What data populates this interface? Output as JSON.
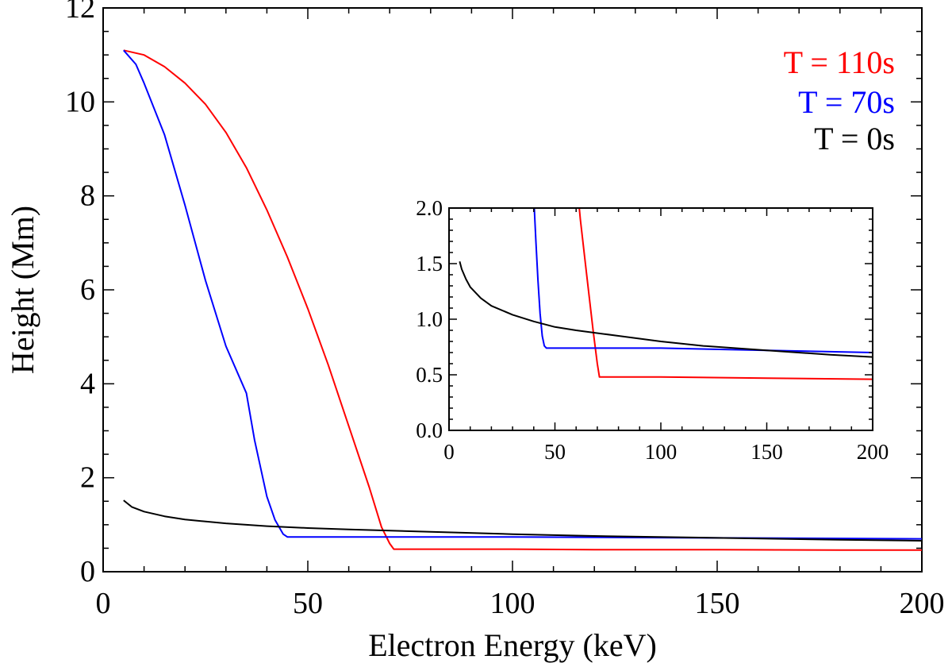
{
  "chart_data": [
    {
      "type": "line",
      "id": "main",
      "xlabel": "Electron Energy (keV)",
      "ylabel": "Height (Mm)",
      "xlim": [
        0,
        200
      ],
      "ylim": [
        0,
        12
      ],
      "xticks": [
        0,
        50,
        100,
        150,
        200
      ],
      "yticks": [
        0,
        2,
        4,
        6,
        8,
        10,
        12
      ],
      "grid": false,
      "legend_position": "top-right",
      "series": [
        {
          "name": "T = 110s",
          "color": "#ff0000",
          "x": [
            5,
            10,
            15,
            20,
            25,
            30,
            35,
            40,
            45,
            50,
            55,
            60,
            65,
            68,
            70,
            71,
            80,
            100,
            120,
            150,
            180,
            200
          ],
          "y": [
            11.1,
            11.0,
            10.75,
            10.4,
            9.95,
            9.35,
            8.6,
            7.7,
            6.7,
            5.6,
            4.4,
            3.1,
            1.8,
            0.95,
            0.6,
            0.48,
            0.48,
            0.48,
            0.47,
            0.47,
            0.46,
            0.46
          ]
        },
        {
          "name": "T = 70s",
          "color": "#0000ff",
          "x": [
            5,
            8,
            10,
            15,
            20,
            25,
            30,
            35,
            37,
            40,
            42,
            44,
            45,
            46,
            50,
            100,
            150,
            200
          ],
          "y": [
            11.1,
            10.8,
            10.4,
            9.3,
            7.8,
            6.2,
            4.8,
            3.8,
            2.8,
            1.6,
            1.1,
            0.8,
            0.74,
            0.74,
            0.74,
            0.74,
            0.72,
            0.7
          ]
        },
        {
          "name": "T = 0s",
          "color": "#000000",
          "x": [
            5,
            7,
            10,
            15,
            20,
            30,
            40,
            50,
            60,
            80,
            100,
            120,
            150,
            180,
            200
          ],
          "y": [
            1.52,
            1.38,
            1.28,
            1.18,
            1.11,
            1.03,
            0.97,
            0.93,
            0.9,
            0.85,
            0.8,
            0.76,
            0.72,
            0.68,
            0.66
          ]
        }
      ]
    },
    {
      "type": "line",
      "id": "inset",
      "xlim": [
        0,
        200
      ],
      "ylim": [
        0,
        2
      ],
      "xticks": [
        0,
        50,
        100,
        150,
        200
      ],
      "yticks": [
        0.0,
        0.5,
        1.0,
        1.5,
        2.0
      ],
      "ytick_labels": [
        "0.0",
        "0.5",
        "1.0",
        "1.5",
        "2.0"
      ],
      "grid": false,
      "series": [
        {
          "name": "T = 110s",
          "color": "#ff0000",
          "x": [
            61,
            62,
            65,
            68,
            70,
            71,
            80,
            100,
            150,
            200
          ],
          "y": [
            2.1,
            1.9,
            1.4,
            0.9,
            0.6,
            0.48,
            0.48,
            0.48,
            0.47,
            0.46
          ]
        },
        {
          "name": "T = 70s",
          "color": "#0000ff",
          "x": [
            40,
            41,
            42,
            43,
            44,
            45,
            46,
            60,
            100,
            150,
            200
          ],
          "y": [
            2.1,
            1.7,
            1.35,
            1.05,
            0.85,
            0.76,
            0.74,
            0.74,
            0.74,
            0.72,
            0.7
          ]
        },
        {
          "name": "T = 0s",
          "color": "#000000",
          "x": [
            5,
            6,
            8,
            10,
            15,
            20,
            30,
            40,
            50,
            60,
            80,
            100,
            120,
            150,
            180,
            200
          ],
          "y": [
            1.52,
            1.45,
            1.36,
            1.29,
            1.19,
            1.12,
            1.04,
            0.98,
            0.93,
            0.9,
            0.85,
            0.8,
            0.76,
            0.72,
            0.68,
            0.66
          ]
        }
      ]
    }
  ],
  "legend": [
    {
      "label": "T = 110s",
      "color": "#ff0000"
    },
    {
      "label": "T = 70s",
      "color": "#0000ff"
    },
    {
      "label": "T = 0s",
      "color": "#000000"
    }
  ]
}
